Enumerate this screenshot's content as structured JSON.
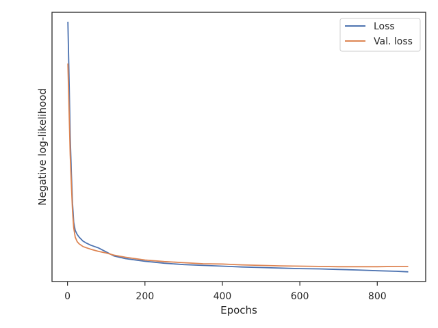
{
  "chart_data": {
    "type": "line",
    "title": "",
    "xlabel": "Epochs",
    "ylabel": "Negative log-likelihood",
    "xlim": [
      -40,
      925
    ],
    "ylim": [
      0.0,
      1.0
    ],
    "x_ticks": [
      0,
      200,
      400,
      600,
      800
    ],
    "x_tick_labels": [
      "0",
      "200",
      "400",
      "600",
      "800"
    ],
    "y_tick_labels": [],
    "grid": false,
    "legend_position": "top-right",
    "series": [
      {
        "name": "Loss",
        "color": "#4c72b0",
        "x": [
          1,
          3,
          5,
          7,
          10,
          13,
          16,
          20,
          25,
          30,
          40,
          50,
          60,
          80,
          100,
          120,
          150,
          200,
          250,
          300,
          350,
          400,
          450,
          500,
          550,
          600,
          650,
          700,
          750,
          800,
          850,
          880
        ],
        "y": [
          0.965,
          0.83,
          0.68,
          0.54,
          0.4,
          0.29,
          0.22,
          0.19,
          0.175,
          0.165,
          0.15,
          0.142,
          0.135,
          0.125,
          0.11,
          0.095,
          0.085,
          0.075,
          0.068,
          0.063,
          0.06,
          0.057,
          0.054,
          0.052,
          0.05,
          0.048,
          0.047,
          0.045,
          0.043,
          0.04,
          0.038,
          0.036
        ]
      },
      {
        "name": "Val. loss",
        "color": "#dd8452",
        "x": [
          1,
          3,
          5,
          7,
          10,
          13,
          16,
          20,
          25,
          30,
          40,
          50,
          60,
          80,
          100,
          120,
          150,
          200,
          250,
          300,
          350,
          400,
          450,
          500,
          550,
          600,
          650,
          700,
          750,
          800,
          850,
          880
        ],
        "y": [
          0.81,
          0.7,
          0.58,
          0.47,
          0.36,
          0.26,
          0.2,
          0.165,
          0.148,
          0.14,
          0.13,
          0.125,
          0.12,
          0.112,
          0.106,
          0.098,
          0.09,
          0.08,
          0.074,
          0.07,
          0.066,
          0.065,
          0.062,
          0.06,
          0.058,
          0.057,
          0.056,
          0.055,
          0.055,
          0.055,
          0.056,
          0.056
        ]
      }
    ]
  }
}
